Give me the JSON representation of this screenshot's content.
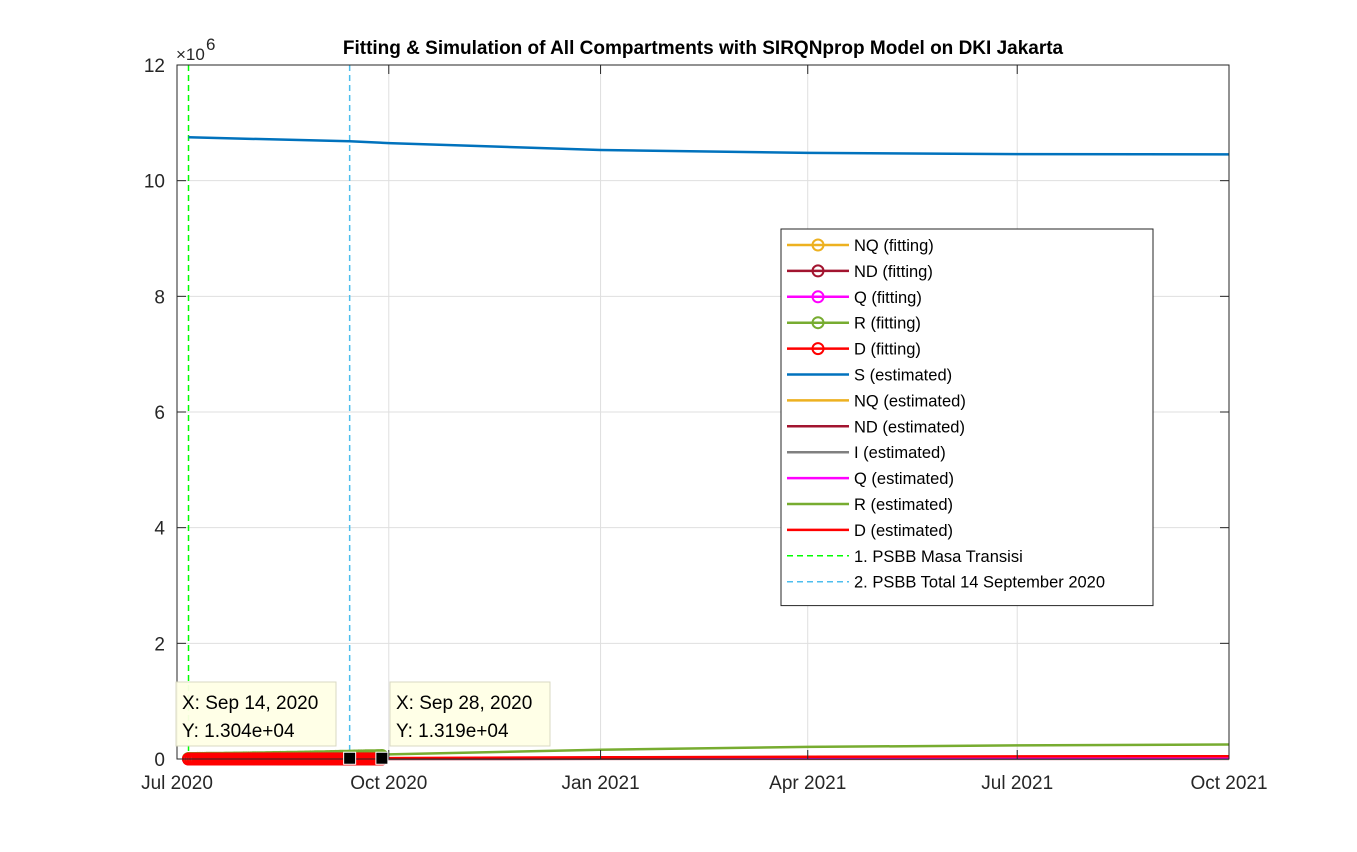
{
  "chart_data": {
    "type": "line",
    "title": "Fitting & Simulation of All Compartments with SIRQNprop Model on DKI Jakarta",
    "xlabel": "",
    "ylabel": "",
    "y_exponent_label": "×10",
    "y_exponent_power": "6",
    "xlim": [
      "2020-07-01",
      "2021-10-01"
    ],
    "ylim": [
      0,
      12000000
    ],
    "grid": true,
    "legend_position": "right",
    "x_ticks": [
      {
        "date": "2020-07-01",
        "label": "Jul 2020"
      },
      {
        "date": "2020-10-01",
        "label": "Oct 2020"
      },
      {
        "date": "2021-01-01",
        "label": "Jan 2021"
      },
      {
        "date": "2021-04-01",
        "label": "Apr 2021"
      },
      {
        "date": "2021-07-01",
        "label": "Jul 2021"
      },
      {
        "date": "2021-10-01",
        "label": "Oct 2021"
      }
    ],
    "y_ticks": [
      {
        "value": 0,
        "label": "0"
      },
      {
        "value": 2000000,
        "label": "2"
      },
      {
        "value": 4000000,
        "label": "4"
      },
      {
        "value": 6000000,
        "label": "6"
      },
      {
        "value": 8000000,
        "label": "8"
      },
      {
        "value": 10000000,
        "label": "10"
      },
      {
        "value": 12000000,
        "label": "12"
      }
    ],
    "series": [
      {
        "name": "NQ (fitting)",
        "color": "#EDB120",
        "style": "marker",
        "x": [
          "2020-07-06",
          "2020-07-20",
          "2020-08-03",
          "2020-08-17",
          "2020-08-31",
          "2020-09-14",
          "2020-09-28"
        ],
        "y": [
          6000,
          7000,
          8000,
          9000,
          10000,
          11000,
          12000
        ]
      },
      {
        "name": "ND (fitting)",
        "color": "#A2142F",
        "style": "marker",
        "x": [
          "2020-07-06",
          "2020-07-20",
          "2020-08-03",
          "2020-08-17",
          "2020-08-31",
          "2020-09-14",
          "2020-09-28"
        ],
        "y": [
          200,
          250,
          300,
          350,
          400,
          450,
          500
        ]
      },
      {
        "name": "Q (fitting)",
        "color": "#FF00FF",
        "style": "marker",
        "x": [
          "2020-07-06",
          "2020-07-20",
          "2020-08-03",
          "2020-08-17",
          "2020-08-31",
          "2020-09-14",
          "2020-09-28"
        ],
        "y": [
          5000,
          6000,
          7000,
          8000,
          9000,
          10000,
          11000
        ]
      },
      {
        "name": "R (fitting)",
        "color": "#77AC30",
        "style": "marker",
        "x": [
          "2020-07-06",
          "2020-07-20",
          "2020-08-03",
          "2020-08-17",
          "2020-08-31",
          "2020-09-14",
          "2020-09-28"
        ],
        "y": [
          8000,
          14000,
          20000,
          28000,
          38000,
          50000,
          60000
        ]
      },
      {
        "name": "D (fitting)",
        "color": "#FF0000",
        "style": "marker",
        "x": [
          "2020-07-06",
          "2020-07-20",
          "2020-08-03",
          "2020-08-17",
          "2020-08-31",
          "2020-09-14",
          "2020-09-28"
        ],
        "y": [
          500,
          700,
          900,
          1100,
          1300,
          1500,
          1700
        ]
      },
      {
        "name": "S (estimated)",
        "color": "#0072BD",
        "style": "line",
        "x": [
          "2020-07-06",
          "2020-09-14",
          "2020-10-01",
          "2021-01-01",
          "2021-04-01",
          "2021-07-01",
          "2021-10-01"
        ],
        "y": [
          10750000,
          10680000,
          10650000,
          10530000,
          10480000,
          10460000,
          10455000
        ]
      },
      {
        "name": "NQ (estimated)",
        "color": "#EDB120",
        "style": "line",
        "x": [
          "2020-07-06",
          "2020-10-01",
          "2021-01-01",
          "2021-04-01",
          "2021-07-01",
          "2021-10-01"
        ],
        "y": [
          6000,
          14000,
          20000,
          24000,
          26000,
          27000
        ]
      },
      {
        "name": "ND (estimated)",
        "color": "#A2142F",
        "style": "line",
        "x": [
          "2020-07-06",
          "2020-10-01",
          "2021-01-01",
          "2021-04-01",
          "2021-07-01",
          "2021-10-01"
        ],
        "y": [
          200,
          700,
          1200,
          1500,
          1700,
          1800
        ]
      },
      {
        "name": "I (estimated)",
        "color": "#808080",
        "style": "line",
        "x": [
          "2020-07-06",
          "2020-10-01",
          "2021-01-01",
          "2021-04-01",
          "2021-07-01",
          "2021-10-01"
        ],
        "y": [
          3000,
          8000,
          9000,
          8000,
          7000,
          6000
        ]
      },
      {
        "name": "Q (estimated)",
        "color": "#FF00FF",
        "style": "line",
        "x": [
          "2020-07-06",
          "2020-10-01",
          "2021-01-01",
          "2021-04-01",
          "2021-07-01",
          "2021-10-01"
        ],
        "y": [
          5000,
          13000,
          18000,
          21000,
          23000,
          24000
        ]
      },
      {
        "name": "R (estimated)",
        "color": "#77AC30",
        "style": "line",
        "x": [
          "2020-07-06",
          "2020-10-01",
          "2021-01-01",
          "2021-04-01",
          "2021-07-01",
          "2021-10-01"
        ],
        "y": [
          8000,
          80000,
          160000,
          210000,
          235000,
          250000
        ]
      },
      {
        "name": "D (estimated)",
        "color": "#FF0000",
        "style": "line",
        "x": [
          "2020-07-06",
          "2020-10-01",
          "2021-01-01",
          "2021-04-01",
          "2021-07-01",
          "2021-10-01"
        ],
        "y": [
          500,
          15000,
          30000,
          40000,
          45000,
          48000
        ]
      }
    ],
    "vertical_lines": [
      {
        "name": "1. PSBB Masa Transisi",
        "date": "2020-07-06",
        "color": "#00FF00"
      },
      {
        "name": "2. PSBB Total 14 September 2020",
        "date": "2020-09-14",
        "color": "#4DBEEE"
      }
    ],
    "datatips": [
      {
        "x_text": "X: Sep 14, 2020",
        "y_text": "Y: 1.304e+04",
        "date": "2020-09-14",
        "value": 13040
      },
      {
        "x_text": "X: Sep 28, 2020",
        "y_text": "Y: 1.319e+04",
        "date": "2020-09-28",
        "value": 13190
      }
    ]
  }
}
